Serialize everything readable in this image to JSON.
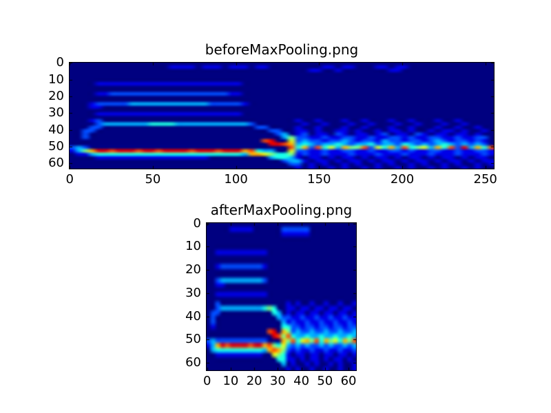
{
  "figure": {
    "background_color": "#ffffff",
    "text_color": "#000000",
    "frame_color": "#000000"
  },
  "chart_data": [
    {
      "type": "heatmap",
      "title": "beforeMaxPooling.png",
      "colormap": "jet",
      "colormap_min_color": "#000080",
      "colormap_max_color": "#cc0000",
      "x_ticks": [
        0,
        50,
        100,
        150,
        200,
        250
      ],
      "y_ticks": [
        0,
        10,
        20,
        30,
        40,
        50,
        60
      ],
      "x_max": 255,
      "y_max": 63,
      "grid_cols": 64,
      "grid_rows": 32,
      "values_note": "intensity 0-9 per cell, row-major top-to-bottom; 0=min(navy) 9=max(red); each cell spans 4 x-units and 2 y-units",
      "rows": [
        "0000000000000000000000000000000000000000000000000000000000000000",
        "0000000000000001111011101110110000000011011000110110000000000000",
        "0000000000000000000000000000000000001100100000001100000000000000",
        "0000000000000000000000000000000000000000000000000000000000000000",
        "0000000000000000000000000000000000000000000000000000000000000000",
        "0000000000000000000000000000000000000000000000000000000000000000",
        "0000111111111111111111111100000000000000000000000000000000000000",
        "0000000000000000000000000000000000000000000000000000000000000000",
        "0000000000000000000000000000000000000000000000000000000000000000",
        "0000112222222222222222221100000000000000000000000000000000000000",
        "0000000000000000000000000000000000000000000000000000000000000000",
        "0000000000000000000000000000000000000000000000000000000000000000",
        "0001222223333333333332222210000000000000000000000000000000000000",
        "0001100000000000000000000000000000000000000000000000000000000000",
        "0000000000000000000000000000000000000000000000000000000000000000",
        "0000111111111111111111111100000000000000000000000000000000000000",
        "0000000000000000000000000000000000000000000000000000000000000000",
        "0001200000000000000000000000000000100100010010001001000100100000",
        "0000233333334444333333333332000000010010001001000100100010010000",
        "0002200000000000000000000000220000100100010010001001000100100100",
        "0022000000000000000000000000002200110100110100101101001011010010",
        "0020000000000000000000000000000230120110210110120110210110110100",
        "0020000000000000000000000000000035221121122112112212112211211220",
        "0000000000000000000000000000089006232212232122132212212321221210",
        "0000000000000000000000000000009987343233432334233243232343232320",
        "2320000000000000000000000000000008472846375582647384563748293748",
        "1357998999899899998999899978433006221121122112112212112211211221",
        "0113444444444444444444444437765445121121112111211121112111211121",
        "0000111111111111111110000000003443101101011010110101101011010110",
        "0000000000000000000000000000000023310110101101011010110101101011",
        "0000000000000000000000000000000002201010010100101001010010100101",
        "0000000000000000000000000000000000101001010010100101001010010100"
      ]
    },
    {
      "type": "heatmap",
      "title": "afterMaxPooling.png",
      "colormap": "jet",
      "colormap_min_color": "#000080",
      "colormap_max_color": "#cc0000",
      "x_ticks": [
        0,
        10,
        20,
        30,
        40,
        50,
        60
      ],
      "y_ticks": [
        0,
        10,
        20,
        30,
        40,
        50,
        60
      ],
      "x_max": 63,
      "y_max": 63,
      "grid_cols": 32,
      "grid_rows": 32,
      "values_note": "intensity 0-9 per cell, row-major top-to-bottom; 0=min(navy) 9=max(red); each cell spans 2 x-units and 2 y-units",
      "rows": [
        "00000000000000000000000000000000",
        "00000111110000002222220000000000",
        "00000000000000001111110000000000",
        "00000000000000000000000000000000",
        "00000000000000000000000000000000",
        "00000000000000000000000000000000",
        "00111111111110000000000000000000",
        "00000000000000000000000000000000",
        "00000000000000000000000000000000",
        "00122222222210000000000000000000",
        "00000000000000000000000000000000",
        "00000000000000000000000000000000",
        "00233333333320000000000000000000",
        "00110000000000000000000000000000",
        "00000000000000000000000000000000",
        "00111111111110000000000000000000",
        "00000000000000000000000000000000",
        "00200000000000000101001001001001",
        "00233333333345400110110110110110",
        "02200000000000430101101101101101",
        "02000000000000032211211211211211",
        "02000000000000003121121121121121",
        "01000000000000004422122122122122",
        "00000000000008907523223223223223",
        "00000000000000985843343343343343",
        "23222222222220007584675847564758",
        "13798999989978546323232232322323",
        "03444444444437875212112112112112",
        "00111111111100654101101101101101",
        "00000000000000044110101101011010",
        "00000000000000003010010100101001",
        "00000000000000000101001001001001"
      ]
    }
  ]
}
